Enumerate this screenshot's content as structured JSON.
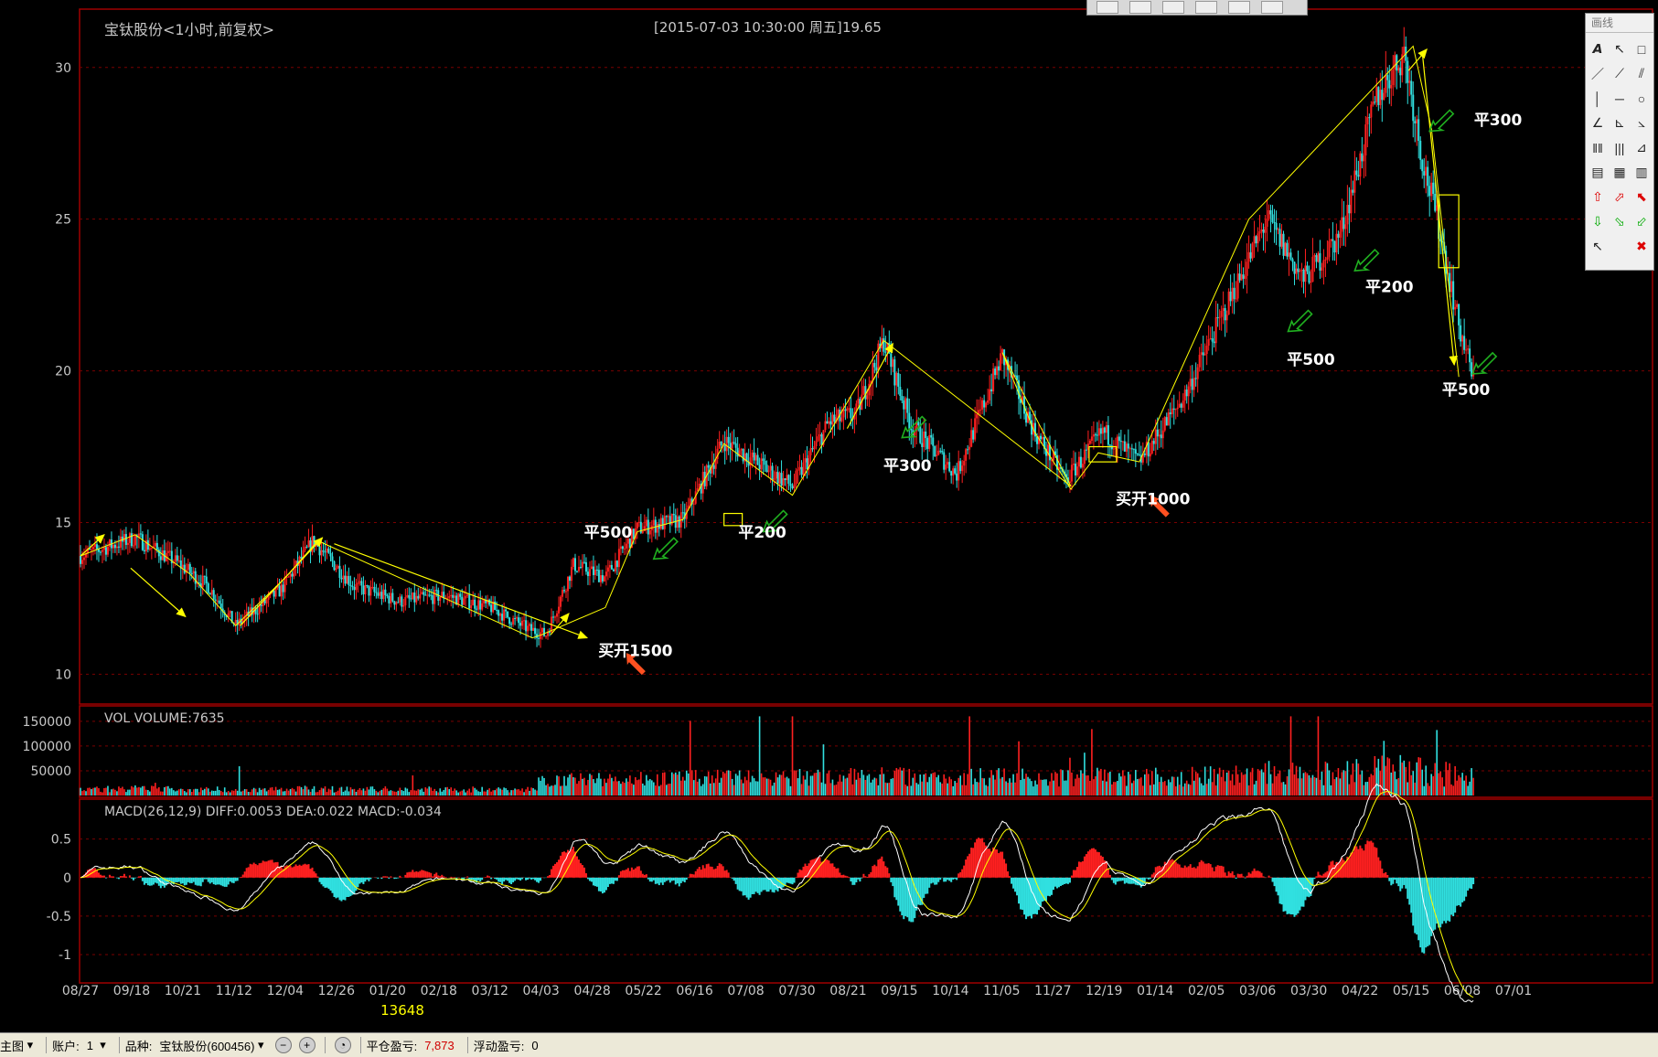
{
  "header": {
    "title": "宝钛股份<1小时,前复权>",
    "datetime": "[2015-07-03  10:30:00 周五]",
    "price": "19.65"
  },
  "colors": {
    "up": "#ff2020",
    "down": "#30e0e0",
    "annotation_arrow": "#ffff00",
    "buy_arrow": "#ff5020",
    "sell_arrow": "#20b020",
    "grid": "#7a0000",
    "diff": "#ffffff",
    "dea": "#ffff00"
  },
  "chart_data": [
    {
      "type": "candlestick",
      "title": "宝钛股份<1小时,前复权>",
      "ylim": [
        9.5,
        31.5
      ],
      "yticks": [
        10,
        15,
        20,
        25,
        30
      ],
      "x_ticks": [
        "08/27",
        "09/18",
        "10/21",
        "11/12",
        "12/04",
        "12/26",
        "01/20",
        "02/18",
        "03/12",
        "04/03",
        "04/28",
        "05/22",
        "06/16",
        "07/08",
        "07/30",
        "08/21",
        "09/15",
        "10/14",
        "11/05",
        "11/27",
        "12/19",
        "01/14",
        "02/05",
        "03/06",
        "03/30",
        "04/22",
        "05/15",
        "06/08",
        "07/01"
      ],
      "x_range": [
        0,
        1590
      ],
      "trend_path": [
        [
          0,
          13.9
        ],
        [
          60,
          14.5
        ],
        [
          105,
          13.7
        ],
        [
          140,
          12.9
        ],
        [
          170,
          11.6
        ],
        [
          220,
          12.8
        ],
        [
          255,
          14.4
        ],
        [
          300,
          12.9
        ],
        [
          350,
          12.4
        ],
        [
          400,
          12.6
        ],
        [
          450,
          12.2
        ],
        [
          490,
          11.5
        ],
        [
          510,
          11.3
        ],
        [
          540,
          13.6
        ],
        [
          575,
          13.2
        ],
        [
          610,
          14.8
        ],
        [
          660,
          15.1
        ],
        [
          705,
          17.7
        ],
        [
          750,
          16.8
        ],
        [
          780,
          16.2
        ],
        [
          820,
          18.3
        ],
        [
          850,
          18.6
        ],
        [
          880,
          21.0
        ],
        [
          910,
          18.2
        ],
        [
          960,
          16.6
        ],
        [
          1010,
          20.5
        ],
        [
          1045,
          18.0
        ],
        [
          1080,
          16.4
        ],
        [
          1120,
          18.0
        ],
        [
          1160,
          17.0
        ],
        [
          1210,
          19.2
        ],
        [
          1260,
          22.4
        ],
        [
          1300,
          25.0
        ],
        [
          1340,
          23.0
        ],
        [
          1380,
          24.5
        ],
        [
          1420,
          29.0
        ],
        [
          1450,
          30.5
        ],
        [
          1470,
          27.0
        ],
        [
          1490,
          24.5
        ],
        [
          1510,
          21.5
        ],
        [
          1527,
          19.65
        ]
      ],
      "annotations": [
        {
          "text": "平500",
          "x": 578,
          "y": 14.5
        },
        {
          "text": "买开1500",
          "x": 608,
          "y": 10.6
        },
        {
          "text": "平200",
          "x": 747,
          "y": 14.5
        },
        {
          "text": "平300",
          "x": 906,
          "y": 16.7
        },
        {
          "text": "买开1000",
          "x": 1175,
          "y": 15.6
        },
        {
          "text": "平500",
          "x": 1348,
          "y": 20.2
        },
        {
          "text": "平200",
          "x": 1434,
          "y": 22.6
        },
        {
          "text": "平300",
          "x": 1553,
          "y": 28.1
        },
        {
          "text": "平500",
          "x": 1518,
          "y": 19.2
        }
      ],
      "zigzag": [
        [
          0,
          13.9
        ],
        [
          60,
          14.6
        ],
        [
          120,
          13.3
        ],
        [
          170,
          11.6
        ],
        [
          225,
          13.2
        ],
        [
          260,
          14.4
        ],
        [
          495,
          11.2
        ],
        [
          505,
          11.3
        ],
        [
          575,
          12.2
        ],
        [
          610,
          14.7
        ],
        [
          660,
          15.1
        ],
        [
          705,
          17.6
        ],
        [
          780,
          15.9
        ],
        [
          880,
          21.0
        ],
        [
          1085,
          16.2
        ],
        [
          1010,
          20.6
        ],
        [
          1045,
          18.0
        ],
        [
          1085,
          16.1
        ],
        [
          1115,
          17.3
        ],
        [
          1160,
          17.0
        ],
        [
          1280,
          25.0
        ],
        [
          1460,
          30.7
        ],
        [
          1480,
          28.0
        ],
        [
          1510,
          19.8
        ]
      ],
      "up_arrows_yellow": [
        [
          [
            0,
            13.9
          ],
          [
            26,
            14.6
          ]
        ],
        [
          [
            55,
            13.5
          ],
          [
            115,
            11.9
          ]
        ],
        [
          [
            175,
            11.6
          ],
          [
            265,
            14.5
          ]
        ],
        [
          [
            278,
            14.3
          ],
          [
            555,
            11.2
          ]
        ],
        [
          [
            515,
            11.3
          ],
          [
            535,
            12.0
          ]
        ],
        [
          [
            840,
            18.1
          ],
          [
            890,
            20.9
          ]
        ],
        [
          [
            1455,
            29.9
          ],
          [
            1475,
            30.6
          ]
        ],
        [
          [
            1470,
            30.5
          ],
          [
            1505,
            20.2
          ]
        ]
      ],
      "buy_arrows": [
        [
          598,
          10.7
        ],
        [
          1172,
          15.9
        ]
      ],
      "sell_arrows": [
        [
          628,
          13.8
        ],
        [
          748,
          14.7
        ],
        [
          900,
          17.8
        ],
        [
          1323,
          21.3
        ],
        [
          1396,
          23.3
        ],
        [
          1478,
          27.9
        ],
        [
          1525,
          19.9
        ]
      ],
      "boxes": [
        [
          705,
          14.9,
          725,
          15.3
        ],
        [
          1105,
          17.0,
          1135,
          17.5
        ],
        [
          1488,
          23.4,
          1510,
          25.8
        ]
      ]
    },
    {
      "type": "bar",
      "title": "VOL  VOLUME:7635",
      "ylim": [
        0,
        170000
      ],
      "yticks": [
        50000,
        100000,
        150000
      ],
      "ytick_labels": [
        "50000",
        "100000",
        "150000"
      ]
    },
    {
      "type": "bar",
      "title": "MACD(26,12,9)  DIFF:0.0053 DEA:0.022 MACD:-0.034",
      "ylim": [
        -1.25,
        0.9
      ],
      "yticks": [
        0.5,
        0,
        -0.5,
        -1
      ],
      "ytick_labels": [
        "0.5",
        "0",
        "-0.5",
        "-1"
      ]
    }
  ],
  "status_bar": {
    "view": "主图",
    "account_label": "账户:",
    "account_value": "1",
    "symbol_label": "品种:",
    "symbol_value": "宝钛股份(600456)",
    "close_pnl_label": "平仓盈亏:",
    "close_pnl_value": "7,873",
    "float_pnl_label": "浮动盈亏:",
    "float_pnl_value": "0"
  },
  "x_cursor_label": "13648",
  "draw_panel": {
    "title": "画线"
  }
}
